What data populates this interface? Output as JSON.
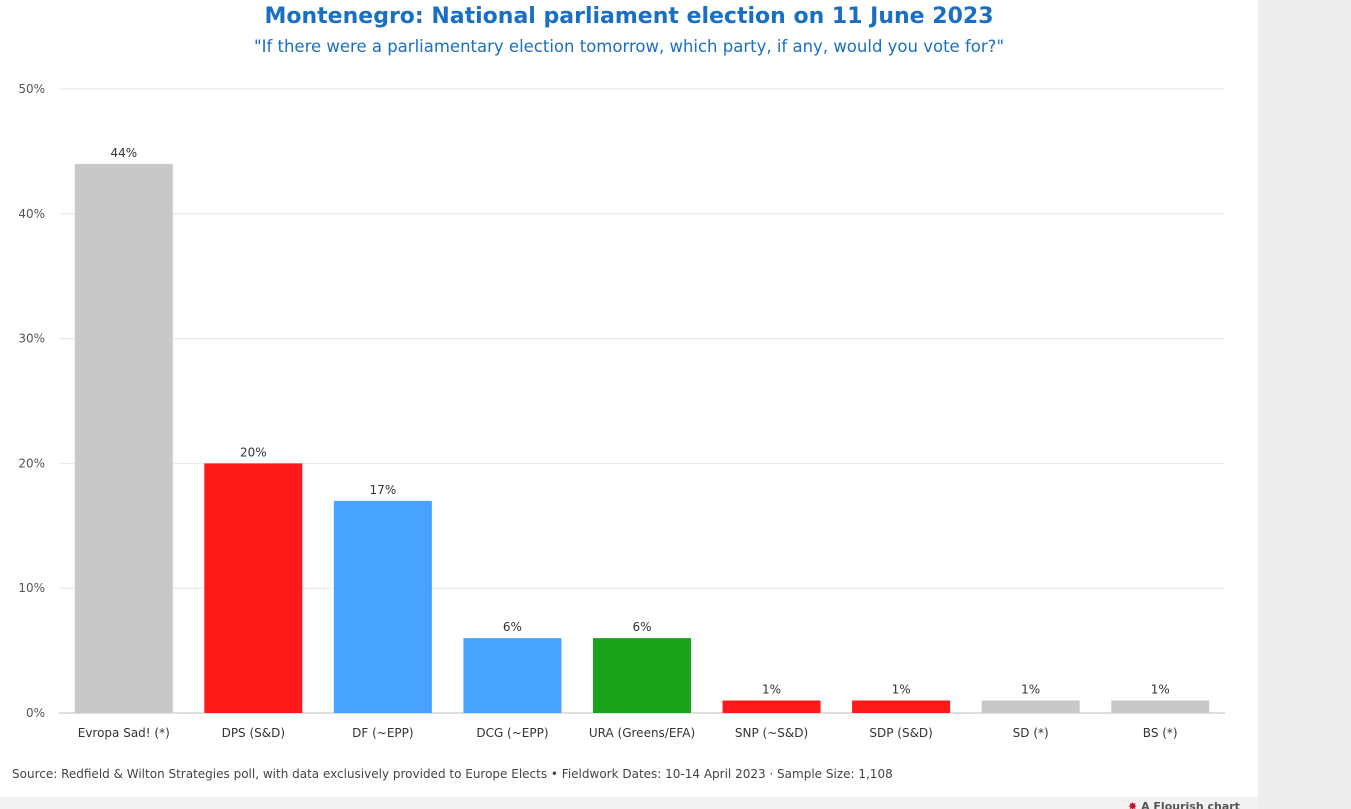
{
  "title": "Montenegro: National parliament election on 11 June 2023",
  "subtitle": "\"If there were a parliamentary election tomorrow, which party, if any, would you vote for?\"",
  "source_note": "Source: Redfield & Wilton Strategies poll, with data exclusively provided to Europe Elects • Fieldwork Dates: 10-14 April 2023 · Sample Size: 1,108",
  "credit": "A Flourish chart",
  "chart_data": {
    "type": "bar",
    "title": "Montenegro: National parliament election on 11 June 2023",
    "subtitle": "\"If there were a parliamentary election tomorrow, which party, if any, would you vote for?\"",
    "xlabel": "",
    "ylabel": "",
    "ylim": [
      0,
      50
    ],
    "yticks": [
      0,
      10,
      20,
      30,
      40,
      50
    ],
    "ytick_labels": [
      "0%",
      "10%",
      "20%",
      "30%",
      "40%",
      "50%"
    ],
    "grid": true,
    "legend": "none",
    "categories": [
      "Evropa Sad! (*)",
      "DPS (S&D)",
      "DF (~EPP)",
      "DCG (~EPP)",
      "URA (Greens/EFA)",
      "SNP (~S&D)",
      "SDP (S&D)",
      "SD (*)",
      "BS (*)"
    ],
    "values": [
      44,
      20,
      17,
      6,
      6,
      1,
      1,
      1,
      1
    ],
    "value_labels": [
      "44%",
      "20%",
      "17%",
      "6%",
      "6%",
      "1%",
      "1%",
      "1%",
      "1%"
    ],
    "colors": [
      "#c8c8c8",
      "#ff1a1a",
      "#47a3ff",
      "#47a3ff",
      "#1aa31a",
      "#ff1a1a",
      "#ff1a1a",
      "#c8c8c8",
      "#c8c8c8"
    ]
  }
}
